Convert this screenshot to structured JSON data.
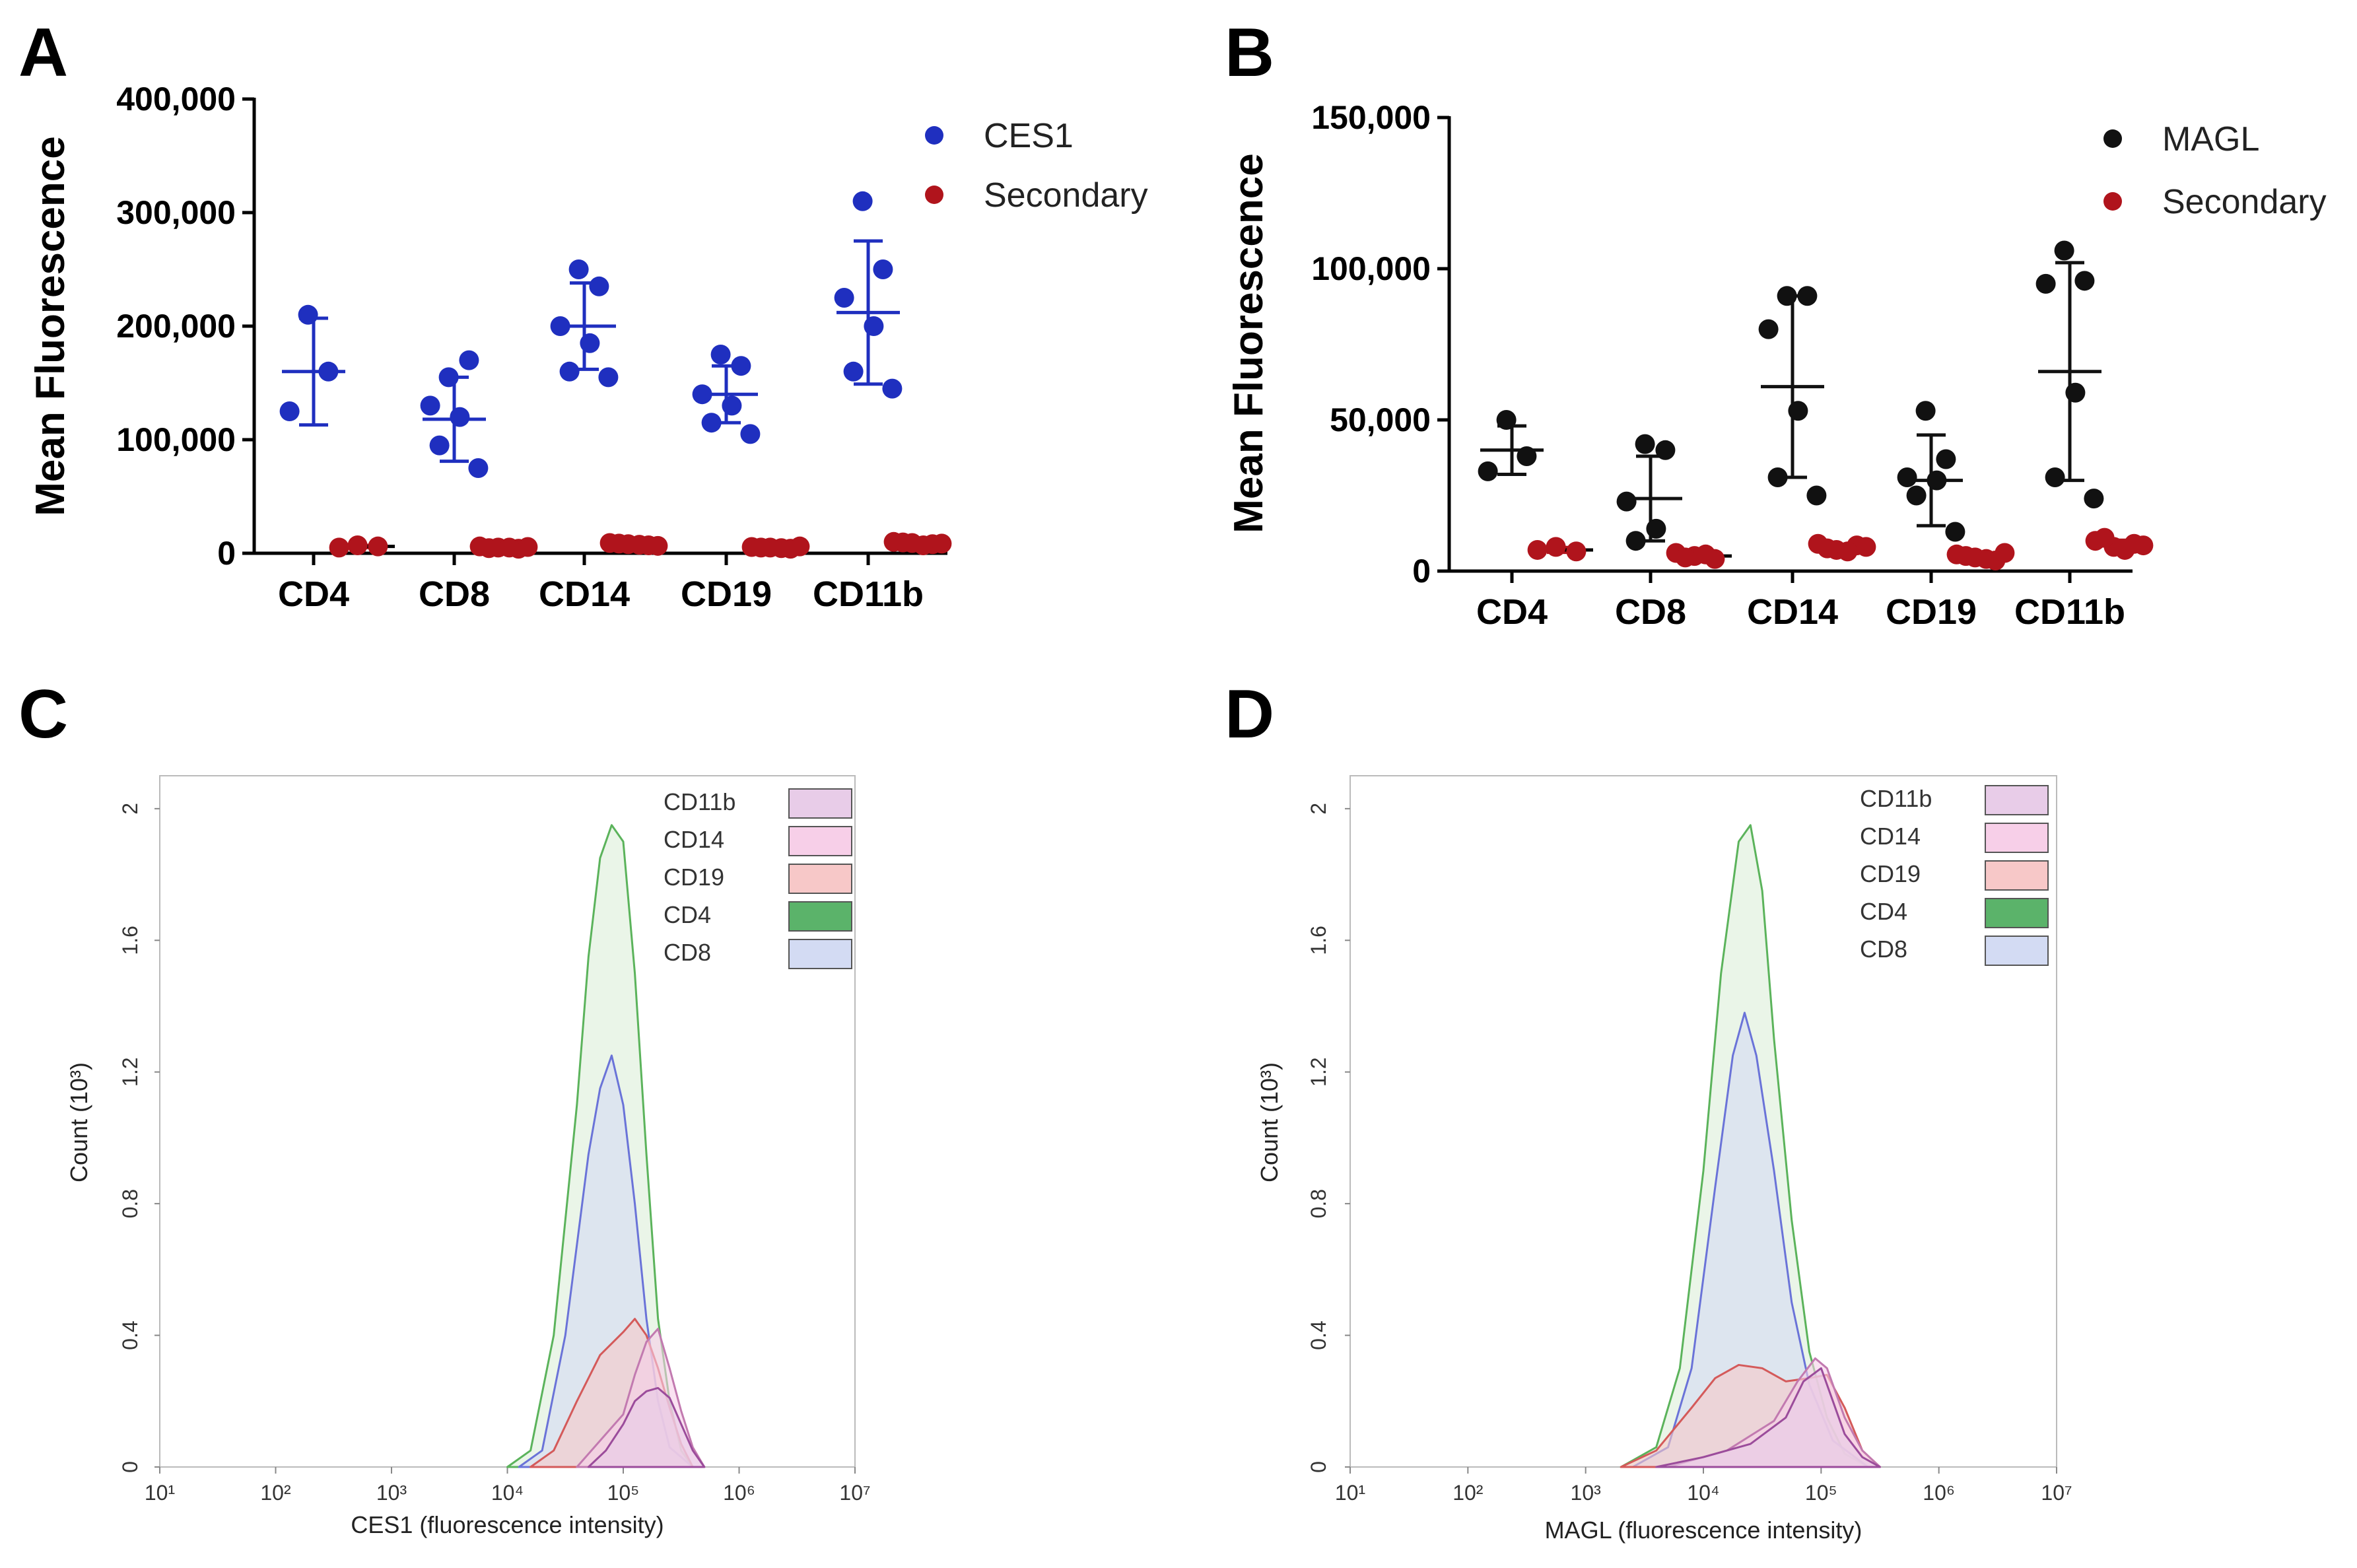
{
  "panels": {
    "A": "A",
    "B": "B",
    "C": "C",
    "D": "D"
  },
  "chart_data": [
    {
      "id": "A",
      "type": "scatter",
      "ylabel": "Mean Fluorescence",
      "ylim": [
        0,
        400000
      ],
      "yticks": [
        0,
        100000,
        200000,
        300000,
        400000
      ],
      "ytick_labels": [
        "0",
        "100,000",
        "200,000",
        "300,000",
        "400,000"
      ],
      "categories": [
        "CD4",
        "CD8",
        "CD14",
        "CD19",
        "CD11b"
      ],
      "legend_position": "top-right",
      "series": [
        {
          "name": "CES1",
          "color": "#1f2fbf",
          "points": [
            [
              210000,
              160000,
              125000
            ],
            [
              155000,
              170000,
              130000,
              120000,
              95000,
              75000
            ],
            [
              250000,
              235000,
              200000,
              185000,
              160000,
              155000
            ],
            [
              175000,
              165000,
              140000,
              130000,
              115000,
              105000
            ],
            [
              310000,
              250000,
              225000,
              200000,
              160000,
              145000
            ]
          ],
          "mean": [
            160000,
            118000,
            200000,
            140000,
            212000
          ],
          "sd": [
            47000,
            37000,
            38000,
            25000,
            63000
          ]
        },
        {
          "name": "Secondary",
          "color": "#b0141c",
          "points": [
            [
              7000,
              6000,
              5000
            ],
            [
              5000,
              4000,
              6000,
              5000,
              4500,
              5500
            ],
            [
              8000,
              7000,
              9000,
              7500,
              8500,
              6500
            ],
            [
              5000,
              4000,
              5500,
              4500,
              5000,
              6000
            ],
            [
              9000,
              8000,
              10000,
              7000,
              9500,
              8500
            ]
          ],
          "mean": [
            6000,
            5000,
            7800,
            5000,
            8700
          ],
          "sd": [
            1000,
            700,
            900,
            700,
            1000
          ]
        }
      ]
    },
    {
      "id": "B",
      "type": "scatter",
      "ylabel": "Mean Fluorescence",
      "ylim": [
        0,
        150000
      ],
      "yticks": [
        0,
        50000,
        100000,
        150000
      ],
      "ytick_labels": [
        "0",
        "50,000",
        "100,000",
        "150,000"
      ],
      "categories": [
        "CD4",
        "CD8",
        "CD14",
        "CD19",
        "CD11b"
      ],
      "legend_position": "top-right",
      "series": [
        {
          "name": "MAGL",
          "color": "#111111",
          "points": [
            [
              50000,
              38000,
              33000
            ],
            [
              42000,
              40000,
              23000,
              14000,
              10000
            ],
            [
              91000,
              91000,
              80000,
              53000,
              31000,
              25000
            ],
            [
              53000,
              37000,
              31000,
              30000,
              25000,
              13000
            ],
            [
              106000,
              96000,
              95000,
              59000,
              31000,
              24000
            ]
          ],
          "mean": [
            40000,
            24000,
            61000,
            30000,
            66000
          ],
          "sd": [
            8000,
            14000,
            30000,
            15000,
            36000
          ]
        },
        {
          "name": "Secondary",
          "color": "#b0141c",
          "points": [
            [
              8000,
              6500,
              7000
            ],
            [
              5000,
              4000,
              6000,
              5500,
              4500
            ],
            [
              7000,
              8500,
              9000,
              6500,
              7500,
              8000
            ],
            [
              4500,
              3500,
              5500,
              4000,
              5000,
              6000
            ],
            [
              8000,
              9000,
              10000,
              7000,
              11000,
              8500
            ]
          ],
          "mean": [
            7000,
            5000,
            7800,
            4800,
            8900
          ],
          "sd": [
            800,
            700,
            900,
            800,
            1300
          ]
        }
      ]
    },
    {
      "id": "C",
      "type": "area",
      "xlabel": "CES1 (fluorescence intensity)",
      "ylabel": "Count (10³)",
      "xscale": "log",
      "xlim": [
        1,
        7
      ],
      "ylim": [
        0,
        2.1
      ],
      "yticks": [
        "0",
        "0.4",
        "0.8",
        "1.2",
        "1.6",
        "2"
      ],
      "xticks": [
        "10¹",
        "10²",
        "10³",
        "10⁴",
        "10⁵",
        "10⁶",
        "10⁷"
      ],
      "legend_position": "top-right",
      "series": [
        {
          "name": "CD11b",
          "color": "#e8cce8",
          "stroke": "#9b4c9b",
          "x": [
            4.7,
            4.85,
            5.0,
            5.1,
            5.2,
            5.3,
            5.4,
            5.5,
            5.6,
            5.7
          ],
          "y": [
            0.0,
            0.05,
            0.13,
            0.2,
            0.23,
            0.24,
            0.21,
            0.13,
            0.05,
            0.0
          ]
        },
        {
          "name": "CD14",
          "color": "#f7cfe8",
          "stroke": "#c27ab0",
          "x": [
            4.6,
            4.8,
            5.0,
            5.1,
            5.2,
            5.3,
            5.4,
            5.5,
            5.6,
            5.7
          ],
          "y": [
            0.0,
            0.08,
            0.16,
            0.28,
            0.38,
            0.42,
            0.3,
            0.17,
            0.06,
            0.0
          ]
        },
        {
          "name": "CD19",
          "color": "#f7c8c8",
          "stroke": "#d45a5a",
          "x": [
            4.2,
            4.4,
            4.6,
            4.8,
            5.0,
            5.1,
            5.2,
            5.3,
            5.4,
            5.5,
            5.6
          ],
          "y": [
            0.0,
            0.05,
            0.2,
            0.34,
            0.41,
            0.45,
            0.4,
            0.3,
            0.18,
            0.07,
            0.0
          ]
        },
        {
          "name": "CD4",
          "color": "#dcefd8",
          "stroke": "#5bb35b",
          "legend_color": "#5bb36a",
          "x": [
            4.0,
            4.2,
            4.4,
            4.6,
            4.7,
            4.8,
            4.9,
            5.0,
            5.1,
            5.2,
            5.3,
            5.4,
            5.5,
            5.6
          ],
          "y": [
            0.0,
            0.05,
            0.4,
            1.1,
            1.55,
            1.85,
            1.95,
            1.9,
            1.5,
            0.95,
            0.45,
            0.2,
            0.05,
            0.0
          ]
        },
        {
          "name": "CD8",
          "color": "#d3dbf3",
          "stroke": "#6a73d8",
          "x": [
            4.1,
            4.3,
            4.5,
            4.7,
            4.8,
            4.9,
            5.0,
            5.1,
            5.2,
            5.3,
            5.4,
            5.6
          ],
          "y": [
            0.0,
            0.05,
            0.4,
            0.95,
            1.15,
            1.25,
            1.1,
            0.8,
            0.45,
            0.2,
            0.06,
            0.0
          ]
        }
      ]
    },
    {
      "id": "D",
      "type": "area",
      "xlabel": "MAGL (fluorescence intensity)",
      "ylabel": "Count (10³)",
      "xscale": "log",
      "xlim": [
        1,
        7
      ],
      "ylim": [
        0,
        2.1
      ],
      "yticks": [
        "0",
        "0.4",
        "0.8",
        "1.2",
        "1.6",
        "2"
      ],
      "xticks": [
        "10¹",
        "10²",
        "10³",
        "10⁴",
        "10⁵",
        "10⁶",
        "10⁷"
      ],
      "legend_position": "top-right",
      "series": [
        {
          "name": "CD11b",
          "color": "#e8cce8",
          "stroke": "#9b4c9b",
          "x": [
            3.6,
            4.0,
            4.4,
            4.7,
            4.85,
            5.0,
            5.1,
            5.2,
            5.35,
            5.5
          ],
          "y": [
            0.0,
            0.03,
            0.07,
            0.15,
            0.26,
            0.3,
            0.2,
            0.1,
            0.03,
            0.0
          ]
        },
        {
          "name": "CD14",
          "color": "#f7cfe8",
          "stroke": "#c27ab0",
          "x": [
            3.7,
            4.2,
            4.6,
            4.8,
            4.95,
            5.05,
            5.2,
            5.35,
            5.5
          ],
          "y": [
            0.0,
            0.05,
            0.14,
            0.26,
            0.33,
            0.3,
            0.15,
            0.05,
            0.0
          ]
        },
        {
          "name": "CD19",
          "color": "#f7c8c8",
          "stroke": "#d45a5a",
          "x": [
            3.3,
            3.6,
            3.9,
            4.1,
            4.3,
            4.5,
            4.7,
            4.9,
            5.05,
            5.2,
            5.35,
            5.5
          ],
          "y": [
            0.0,
            0.05,
            0.18,
            0.27,
            0.31,
            0.3,
            0.26,
            0.27,
            0.28,
            0.18,
            0.05,
            0.0
          ]
        },
        {
          "name": "CD4",
          "color": "#dcefd8",
          "stroke": "#5bb35b",
          "legend_color": "#5bb36a",
          "x": [
            3.3,
            3.6,
            3.8,
            4.0,
            4.15,
            4.3,
            4.4,
            4.5,
            4.6,
            4.75,
            4.9,
            5.05,
            5.2,
            5.4
          ],
          "y": [
            0.0,
            0.06,
            0.3,
            0.9,
            1.5,
            1.9,
            1.95,
            1.75,
            1.3,
            0.75,
            0.35,
            0.15,
            0.04,
            0.0
          ]
        },
        {
          "name": "CD8",
          "color": "#d3dbf3",
          "stroke": "#6a73d8",
          "x": [
            3.4,
            3.7,
            3.9,
            4.1,
            4.25,
            4.35,
            4.45,
            4.6,
            4.75,
            4.9,
            5.1,
            5.4
          ],
          "y": [
            0.0,
            0.06,
            0.3,
            0.85,
            1.25,
            1.38,
            1.25,
            0.9,
            0.5,
            0.25,
            0.08,
            0.0
          ]
        }
      ]
    }
  ]
}
